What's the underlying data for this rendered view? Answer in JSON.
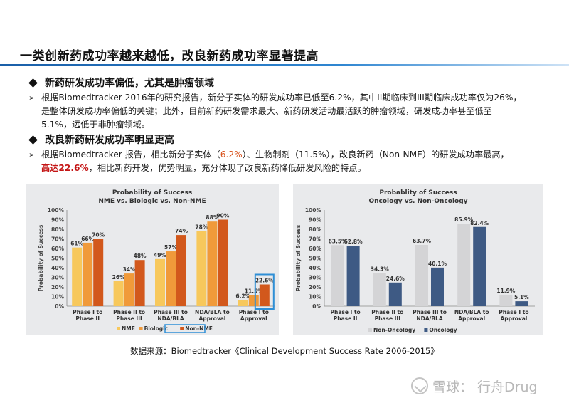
{
  "slide": {
    "title": "一类创新药成功率越来越低，改良新药成功率显著提高"
  },
  "section1": {
    "heading": "新药研发成功率偏低，尤其是肿瘤领域",
    "para_line1": "根据Biomedtracker 2016年的研究报告，新分子实体的研发成功率已低至6.2%，其中II期临床到III期临床成功率仅为26%，",
    "para_line2": "是整体研发成功率偏低的关键；此外，目前新药研发需求最大、新药研发活动最活跃的肿瘤领域，研发成功率甚至低至",
    "para_line3": "5.1%，远低于非肿瘤领域。"
  },
  "section2": {
    "heading": "改良新药研发成功率明显更高",
    "para_a": "根据Biomedtracker 报告，相比新分子实体（",
    "para_nme": "6.2%",
    "para_b": "）、生物制剂（11.5%），改良新药（Non-NME）的研发成功率最高，",
    "para_hl": "高达22.6%",
    "para_c": "，相比新药开发，优势明显，充分体现了改良新药降低研发风险的特点。"
  },
  "source": "数据来源：Biomedtracker《Clinical Development Success Rate 2006-2015》",
  "watermark": {
    "site": "雪球：",
    "author": "行舟Drug"
  },
  "colors": {
    "nme": "#f7c85c",
    "biologic": "#f09a3a",
    "non_nme": "#d2581c",
    "non_oncology": "#d4d4d6",
    "oncology": "#3e5a84",
    "highlight_box": "#2f8fd6",
    "title_rule": "#1a5fa8"
  },
  "chart_data": [
    {
      "type": "bar",
      "title": "Probability of Success",
      "subtitle": "NME vs. Biologic vs. Non-NME",
      "ylabel": "Probability of Success",
      "ylim": [
        0,
        100
      ],
      "yticks": [
        "0%",
        "10%",
        "20%",
        "30%",
        "40%",
        "50%",
        "60%",
        "70%",
        "80%",
        "90%",
        "100%"
      ],
      "categories": [
        [
          "Phase I to",
          "Phase II"
        ],
        [
          "Phase II to",
          "Phase III"
        ],
        [
          "Phase III to",
          "NDA/BLA"
        ],
        [
          "NDA/BLA to",
          "Approval"
        ],
        [
          "Phase I to",
          "Approval"
        ]
      ],
      "series": [
        {
          "name": "NME",
          "values": [
            61,
            26,
            49,
            78,
            6.2
          ],
          "labels": [
            "61%",
            "26%",
            "49%",
            "78%",
            "6.2%"
          ]
        },
        {
          "name": "Biologic",
          "values": [
            66,
            34,
            57,
            88,
            11.5
          ],
          "labels": [
            "66%",
            "34%",
            "57%",
            "88%",
            "11.5%"
          ]
        },
        {
          "name": "Non-NME",
          "values": [
            70,
            48,
            74,
            90,
            22.6
          ],
          "labels": [
            "70%",
            "48%",
            "74%",
            "90%",
            "22.6%"
          ]
        }
      ],
      "legend": "bottom",
      "highlight": {
        "category_index": 4,
        "series": "Non-NME"
      }
    },
    {
      "type": "bar",
      "title": "Probablity of Success",
      "subtitle": "Oncology vs. Non-Oncology",
      "ylabel": "Probability of Success",
      "ylim": [
        0,
        100
      ],
      "yticks": [
        "0%",
        "10%",
        "20%",
        "30%",
        "40%",
        "50%",
        "60%",
        "70%",
        "80%",
        "90%",
        "100%"
      ],
      "categories": [
        [
          "Phase I to",
          "Phase II"
        ],
        [
          "Phase II to",
          "Phase III"
        ],
        [
          "Phase III to",
          "NDA/BLA"
        ],
        [
          "NDA/BLA to",
          "Approval"
        ],
        [
          "Phase I to",
          "Approval"
        ]
      ],
      "series": [
        {
          "name": "Non-Oncology",
          "values": [
            63.5,
            34.3,
            63.7,
            85.9,
            11.9
          ],
          "labels": [
            "63.5%",
            "34.3%",
            "63.7%",
            "85.9%",
            "11.9%"
          ]
        },
        {
          "name": "Oncology",
          "values": [
            62.8,
            24.6,
            40.1,
            82.4,
            5.1
          ],
          "labels": [
            "62.8%",
            "24.6%",
            "40.1%",
            "82.4%",
            "5.1%"
          ]
        }
      ],
      "legend": "bottom"
    }
  ]
}
